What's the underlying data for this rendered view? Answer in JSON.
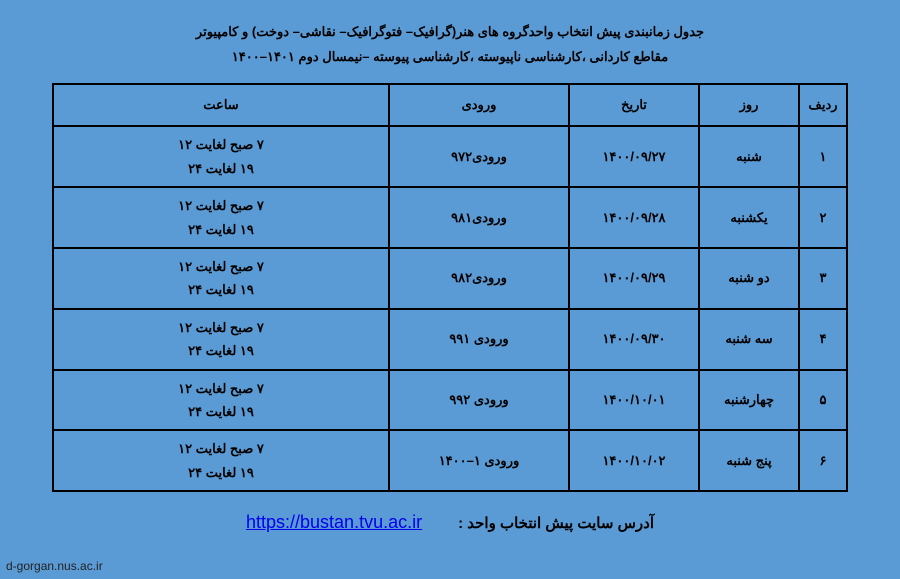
{
  "header": {
    "line1": "جدول زمانبندی پیش انتخاب واحدگروه های هنر(گرافیک– فتوگرافیک– نقاشی– دوخت) و کامپیوتر",
    "line2": "مقاطع کاردانی ،کارشناسی ناپیوسته ،کارشناسی پیوسته –نیمسال دوم ۱۴۰۱–۱۴۰۰"
  },
  "table": {
    "columns": {
      "row": "ردیف",
      "day": "روز",
      "date": "تاریخ",
      "entry": "ورودی",
      "time": "ساعت"
    },
    "time_line1": "۷ صبح لغایت ۱۲",
    "time_line2": "۱۹ لغایت ۲۴",
    "rows": [
      {
        "n": "۱",
        "day": "شنبه",
        "date": "۱۴۰۰/۰۹/۲۷",
        "entry": "ورودی۹۷۲"
      },
      {
        "n": "۲",
        "day": "یکشنبه",
        "date": "۱۴۰۰/۰۹/۲۸",
        "entry": "ورودی۹۸۱"
      },
      {
        "n": "۳",
        "day": "دو شنبه",
        "date": "۱۴۰۰/۰۹/۲۹",
        "entry": "ورودی۹۸۲"
      },
      {
        "n": "۴",
        "day": "سه شنبه",
        "date": "۱۴۰۰/۰۹/۳۰",
        "entry": "ورودی ۹۹۱"
      },
      {
        "n": "۵",
        "day": "چهارشنبه",
        "date": "۱۴۰۰/۱۰/۰۱",
        "entry": "ورودی ۹۹۲"
      },
      {
        "n": "۶",
        "day": "پنج شنبه",
        "date": "۱۴۰۰/۱۰/۰۲",
        "entry": "ورودی ۱–۱۴۰۰"
      }
    ]
  },
  "footer": {
    "label": "آدرس سایت پیش انتخاب واحد  :",
    "url_text": "https://bustan.tvu.ac.ir",
    "url_href": "https://bustan.tvu.ac.ir"
  },
  "watermark": "d-gorgan.nus.ac.ir",
  "colors": {
    "background": "#5b9bd5",
    "border": "#000000",
    "text": "#000000",
    "link": "#0000ee"
  }
}
